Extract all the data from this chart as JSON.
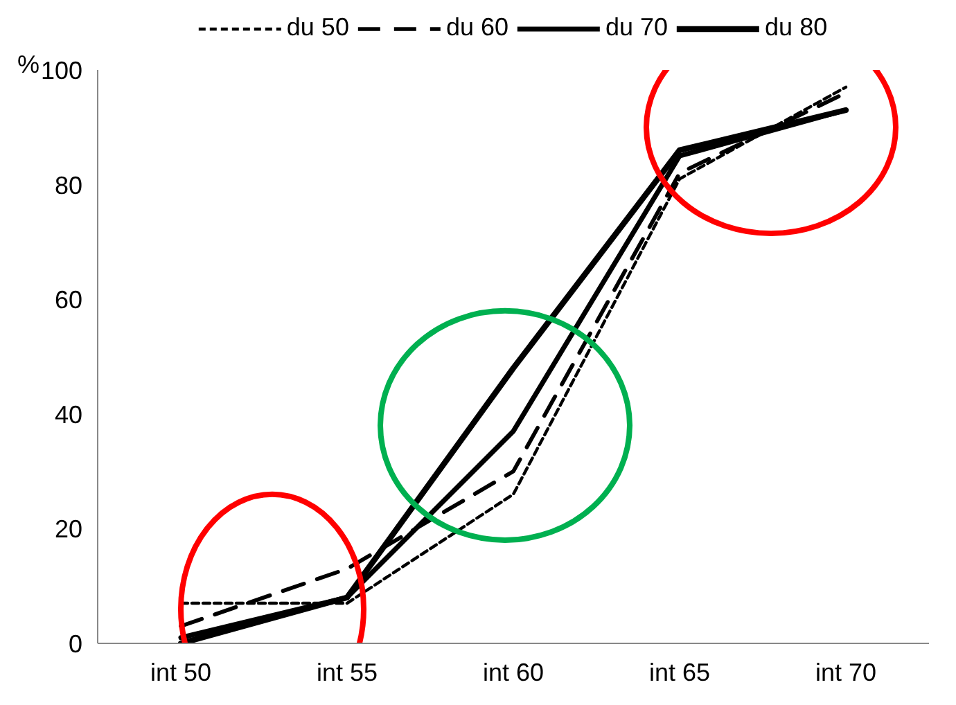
{
  "chart_data": {
    "type": "line",
    "ylabel": "%",
    "categories": [
      "int 50",
      "int 55",
      "int 60",
      "int 65",
      "int 70"
    ],
    "ylim": [
      0,
      100
    ],
    "yticks": [
      0,
      20,
      40,
      60,
      80,
      100
    ],
    "grid": false,
    "legend": "top",
    "marker": "none",
    "series": [
      {
        "name": "du 50",
        "color": "#000000",
        "line_style": "dotted",
        "values": [
          7,
          7,
          26,
          81,
          97
        ]
      },
      {
        "name": "du 60",
        "color": "#000000",
        "line_style": "dashed",
        "values": [
          3,
          13,
          30,
          82,
          96
        ]
      },
      {
        "name": "du 70",
        "color": "#000000",
        "line_style": "solid",
        "values": [
          1,
          8,
          37,
          85,
          93
        ]
      },
      {
        "name": "du 80",
        "color": "#000000",
        "line_style": "solid",
        "values": [
          0,
          8,
          48,
          86,
          93
        ]
      }
    ]
  }
}
